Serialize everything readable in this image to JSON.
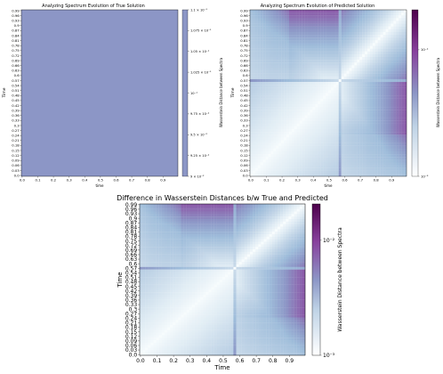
{
  "charts": [
    {
      "title": "Analyzing Spectrum Evolution of True Solution",
      "xlabel": "time",
      "ylabel": "Time",
      "cbar_label": "Wasserstein Distance between Spectra"
    },
    {
      "title": "Analyzing Spectrum Evolution of Predicted Solution",
      "xlabel": "time",
      "ylabel": "Time",
      "cbar_label": "Wasserstein Distance between Spectra"
    },
    {
      "title": "Difference in Wasserstein Distances b/w True and Predicted",
      "xlabel": "Time",
      "ylabel": "Time",
      "cbar_label": "Wasserstein Distance between Spectra"
    }
  ],
  "chart_data": [
    {
      "type": "heatmap",
      "title": "Analyzing Spectrum Evolution of True Solution",
      "xlabel": "time",
      "ylabel": "Time",
      "x_ticks": [
        "0.0",
        "0.1",
        "0.2",
        "0.3",
        "0.4",
        "0.5",
        "0.6",
        "0.7",
        "0.8",
        "0.9"
      ],
      "y_ticks": [
        "0.99",
        "0.96",
        "0.93",
        "0.9",
        "0.87",
        "0.84",
        "0.81",
        "0.78",
        "0.75",
        "0.72",
        "0.69",
        "0.66",
        "0.63",
        "0.6",
        "0.57",
        "0.54",
        "0.51",
        "0.48",
        "0.45",
        "0.42",
        "0.39",
        "0.36",
        "0.33",
        "0.3",
        "0.27",
        "0.24",
        "0.21",
        "0.18",
        "0.15",
        "0.12",
        "0.09",
        "0.06",
        "0.03",
        "0.0"
      ],
      "colorbar": {
        "label": "Wasserstein Distance between Spectra",
        "scale": "log",
        "ticks": [
          "1.1 × 10⁻¹",
          "1.075 × 10⁻¹",
          "1.05 × 10⁻¹",
          "1.025 × 10⁻¹",
          "10⁻¹",
          "9.75 × 10⁻²",
          "9.5 × 10⁻²",
          "9.25 × 10⁻²",
          "9 × 10⁻²"
        ]
      },
      "uniform_value": 0.1
    },
    {
      "type": "heatmap",
      "title": "Analyzing Spectrum Evolution of Predicted Solution",
      "xlabel": "time",
      "ylabel": "Time",
      "x_ticks": [
        "0.0",
        "0.1",
        "0.2",
        "0.3",
        "0.4",
        "0.5",
        "0.6",
        "0.7",
        "0.8",
        "0.9"
      ],
      "y_ticks": [
        "0.99",
        "0.96",
        "0.93",
        "0.9",
        "0.87",
        "0.84",
        "0.81",
        "0.78",
        "0.75",
        "0.72",
        "0.69",
        "0.66",
        "0.63",
        "0.6",
        "0.57",
        "0.54",
        "0.51",
        "0.48",
        "0.45",
        "0.42",
        "0.39",
        "0.36",
        "0.33",
        "0.3",
        "0.27",
        "0.24",
        "0.21",
        "0.18",
        "0.15",
        "0.12",
        "0.09",
        "0.06",
        "0.03",
        "0.0"
      ],
      "colorbar": {
        "label": "Wasserstein Distance between Spectra",
        "scale": "log",
        "range": [
          0.001,
          0.03
        ],
        "ticks": [
          "10⁻²",
          "10⁻³"
        ]
      },
      "feature_time": 0.57
    },
    {
      "type": "heatmap",
      "title": "Difference in Wasserstein Distances b/w True and Predicted",
      "xlabel": "Time",
      "ylabel": "Time",
      "x_ticks": [
        "0.0",
        "0.1",
        "0.2",
        "0.3",
        "0.4",
        "0.5",
        "0.6",
        "0.7",
        "0.8",
        "0.9"
      ],
      "y_ticks": [
        "0.99",
        "0.96",
        "0.93",
        "0.9",
        "0.87",
        "0.84",
        "0.81",
        "0.78",
        "0.75",
        "0.72",
        "0.69",
        "0.66",
        "0.63",
        "0.6",
        "0.57",
        "0.54",
        "0.51",
        "0.48",
        "0.45",
        "0.42",
        "0.39",
        "0.36",
        "0.33",
        "0.3",
        "0.27",
        "0.24",
        "0.21",
        "0.18",
        "0.15",
        "0.12",
        "0.09",
        "0.06",
        "0.03",
        "0.0"
      ],
      "colorbar": {
        "label": "Wasserstein Distance between Spectra",
        "scale": "log",
        "range": [
          0.001,
          0.03
        ],
        "ticks": [
          "10⁻²",
          "10⁻³"
        ]
      },
      "feature_time": 0.57
    }
  ]
}
